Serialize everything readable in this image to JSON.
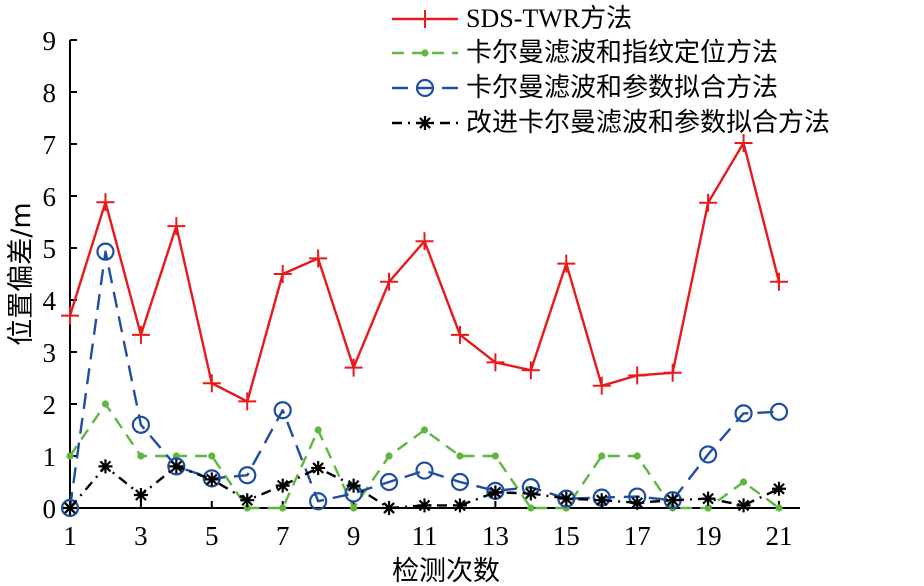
{
  "chart_data": {
    "type": "line",
    "xlabel": "检测次数",
    "ylabel": "位置偏差/m",
    "xlim": [
      1,
      21
    ],
    "ylim": [
      0,
      9
    ],
    "xticks": [
      1,
      3,
      5,
      7,
      9,
      11,
      13,
      15,
      17,
      19,
      21
    ],
    "yticks": [
      0,
      1,
      2,
      3,
      4,
      5,
      6,
      7,
      8,
      9
    ],
    "grid": false,
    "legend_position": "top-right",
    "x": [
      1,
      2,
      3,
      4,
      5,
      6,
      7,
      8,
      9,
      10,
      11,
      12,
      13,
      14,
      15,
      16,
      17,
      18,
      19,
      20,
      21
    ],
    "series": [
      {
        "name": "SDS-TWR方法",
        "color": "#e8191b",
        "line_style": "solid",
        "marker": "plus",
        "values": [
          3.7,
          5.88,
          3.33,
          5.42,
          2.4,
          2.05,
          4.5,
          4.8,
          2.7,
          4.35,
          5.13,
          3.33,
          2.8,
          2.65,
          4.7,
          2.35,
          2.55,
          2.6,
          5.87,
          7.02,
          4.35
        ]
      },
      {
        "name": "卡尔曼滤波和指纹定位方法",
        "color": "#5fb640",
        "line_style": "dashed",
        "marker": "dot",
        "values": [
          1.0,
          2.0,
          1.0,
          1.0,
          1.0,
          0.0,
          0.0,
          1.5,
          0.0,
          1.0,
          1.5,
          1.0,
          1.0,
          0.0,
          0.0,
          1.0,
          1.0,
          0.0,
          0.0,
          0.5,
          0.0
        ]
      },
      {
        "name": "卡尔曼滤波和参数拟合方法",
        "color": "#1f4ea0",
        "line_style": "long-dashed",
        "marker": "circle",
        "values": [
          0.0,
          4.93,
          1.6,
          0.8,
          0.57,
          0.63,
          1.88,
          0.13,
          0.28,
          0.5,
          0.72,
          0.5,
          0.33,
          0.4,
          0.18,
          0.2,
          0.22,
          0.15,
          1.03,
          1.82,
          1.85
        ]
      },
      {
        "name": "改进卡尔曼滤波和参数拟合方法",
        "color": "#000000",
        "line_style": "dash-dot",
        "marker": "asterisk",
        "values": [
          0.0,
          0.8,
          0.25,
          0.8,
          0.55,
          0.15,
          0.43,
          0.77,
          0.43,
          0.0,
          0.05,
          0.05,
          0.3,
          0.28,
          0.18,
          0.15,
          0.1,
          0.15,
          0.18,
          0.05,
          0.37
        ]
      }
    ]
  }
}
